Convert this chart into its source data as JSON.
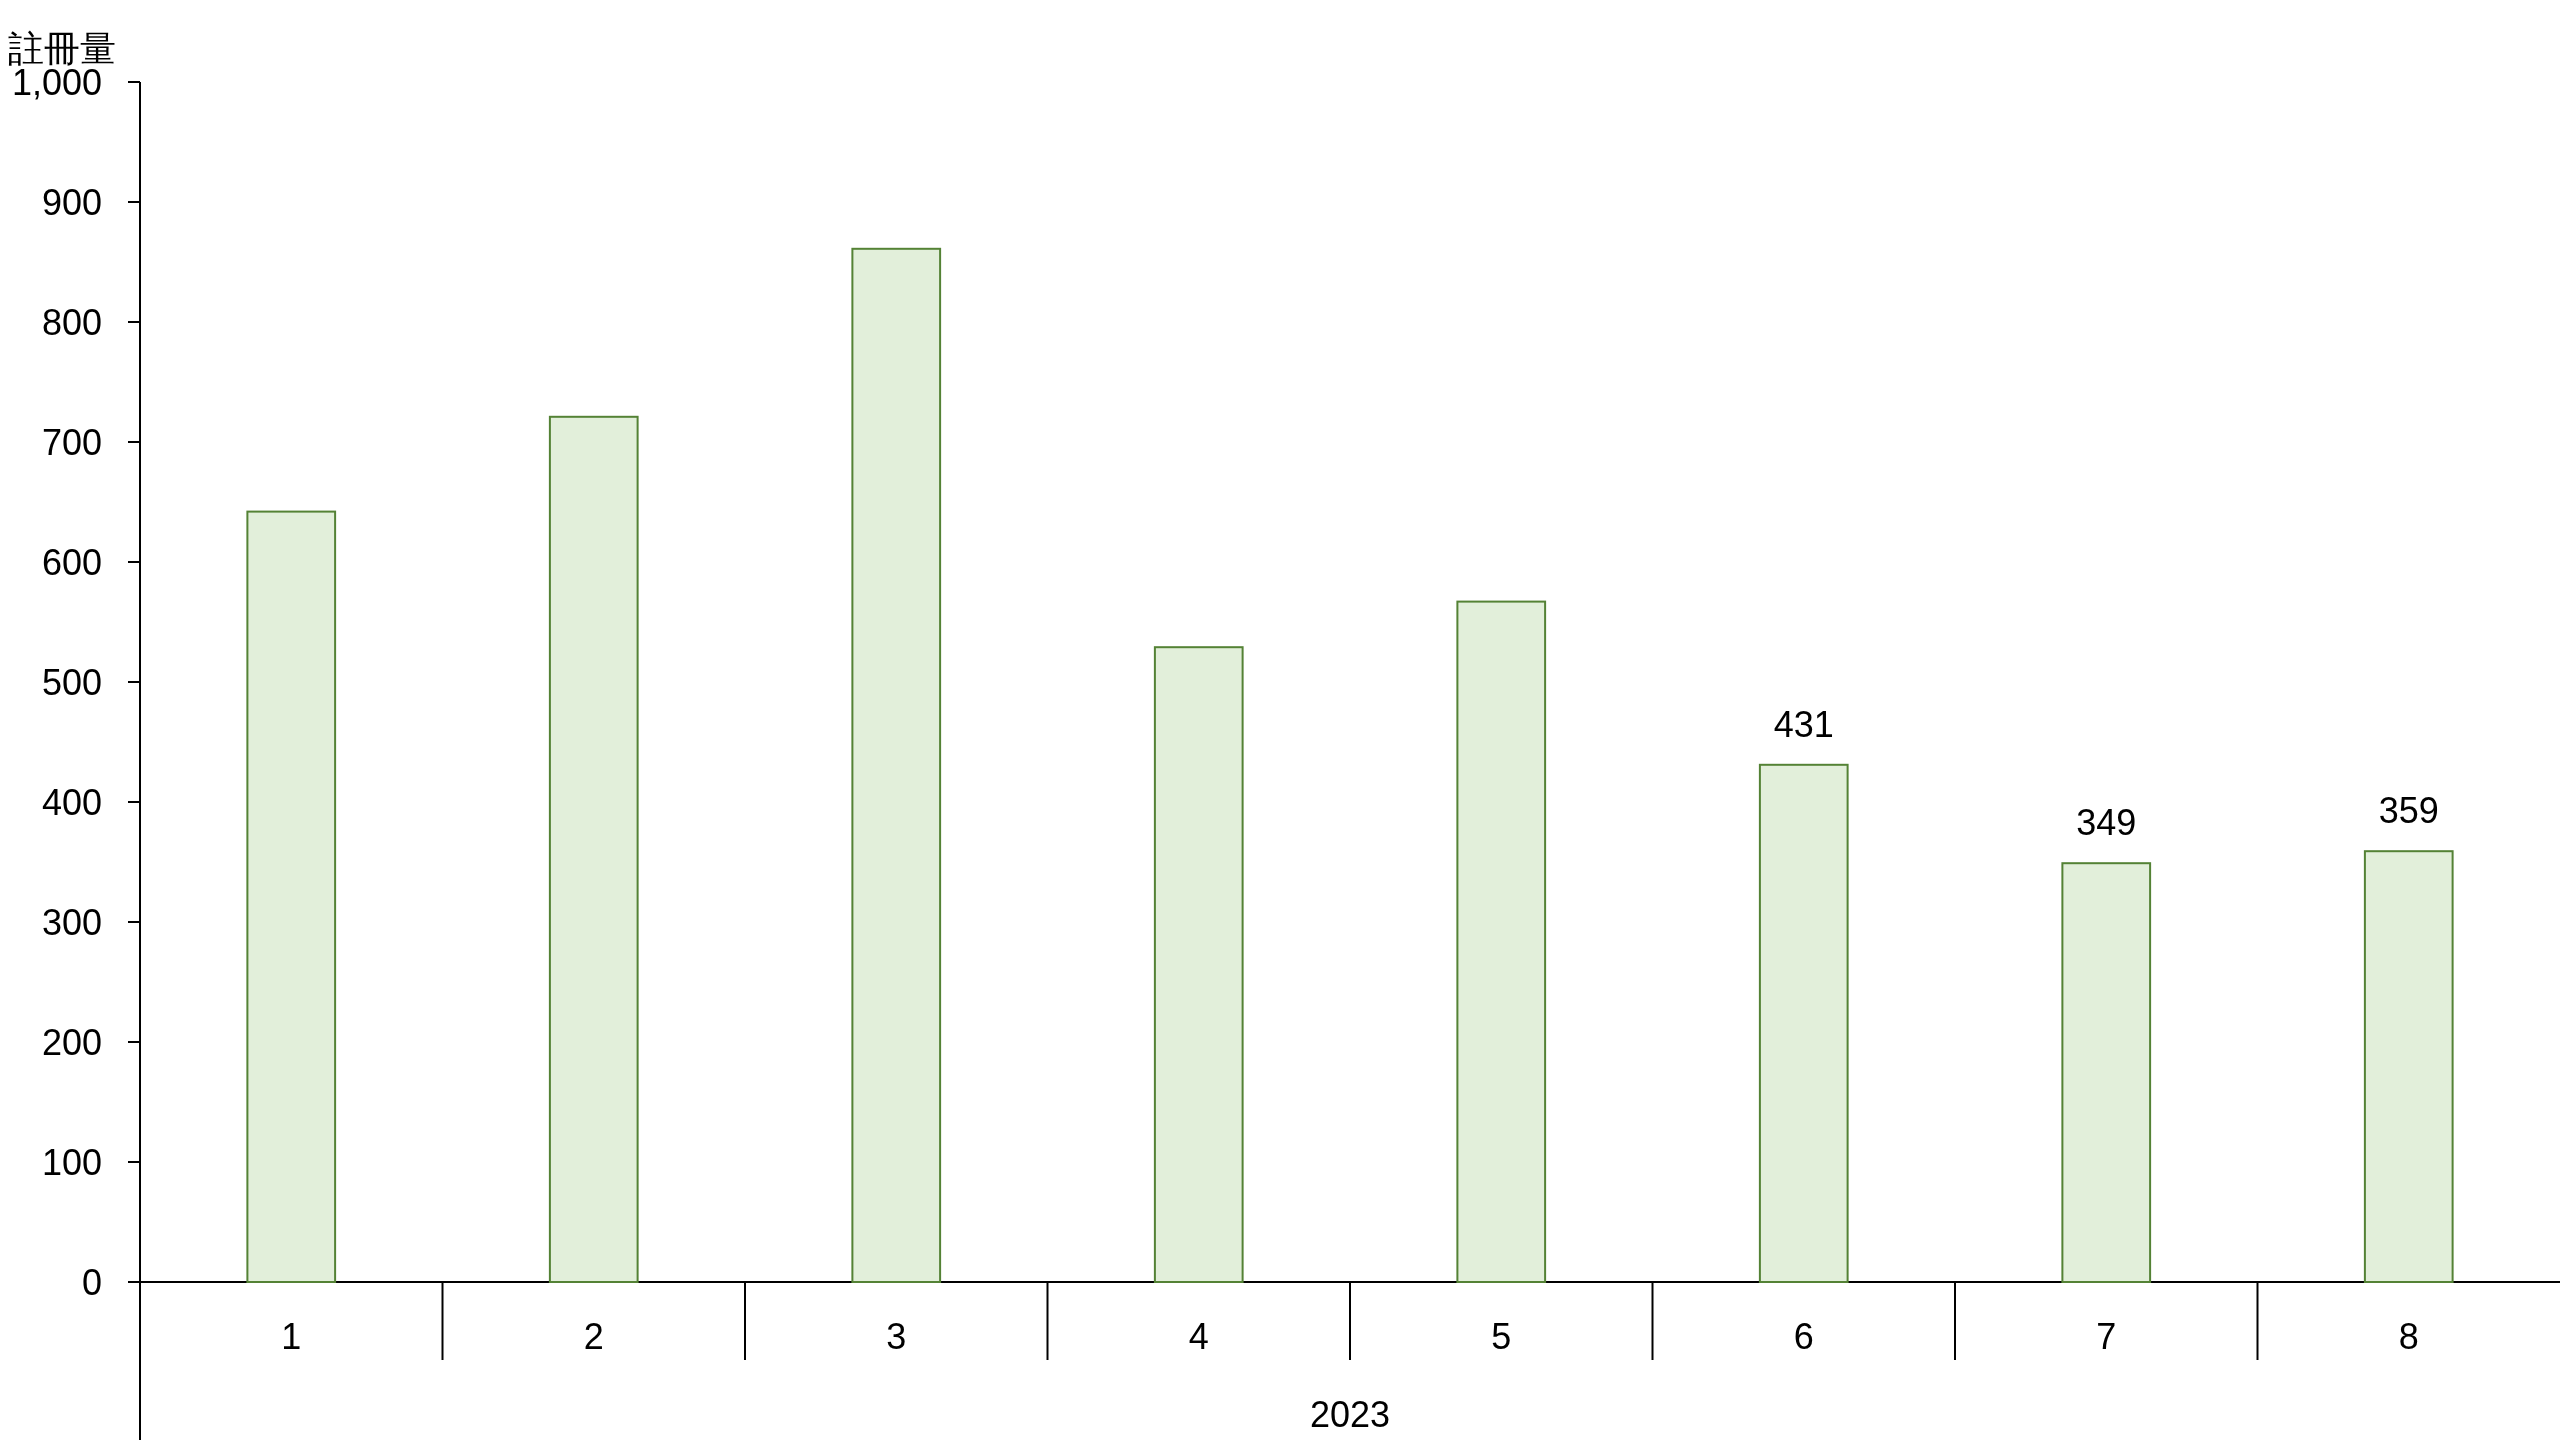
{
  "chart_data": {
    "type": "bar",
    "ylabel": "註冊量",
    "xlabel": "2023",
    "categories": [
      "1",
      "2",
      "3",
      "4",
      "5",
      "6",
      "7",
      "8"
    ],
    "values": [
      642,
      721,
      861,
      529,
      567,
      431,
      349,
      359
    ],
    "value_labels": [
      null,
      null,
      null,
      null,
      null,
      "431",
      "349",
      "359"
    ],
    "color": "#e2efda",
    "ylim": [
      0,
      1000
    ],
    "yticks": [
      0,
      100,
      200,
      300,
      400,
      500,
      600,
      700,
      800,
      900,
      {
        "value": 1000,
        "label": "1,000"
      }
    ]
  }
}
